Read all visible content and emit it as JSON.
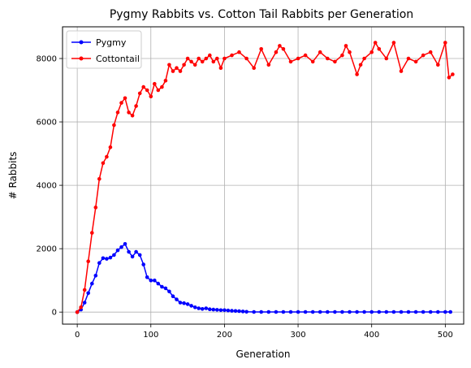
{
  "chart_data": {
    "type": "line",
    "title": "Pygmy Rabbits vs. Cotton Tail Rabbits per Generation",
    "xlabel": "Generation",
    "ylabel": "# Rabbits",
    "xlim": [
      -20,
      525
    ],
    "ylim": [
      -380,
      9000
    ],
    "xticks": [
      0,
      100,
      200,
      300,
      400,
      500
    ],
    "yticks": [
      0,
      2000,
      4000,
      6000,
      8000
    ],
    "grid": true,
    "legend_position": "upper-left",
    "series": [
      {
        "name": "Pygmy",
        "color": "#0000ff",
        "marker": "circle",
        "x": [
          0,
          5,
          10,
          15,
          20,
          25,
          30,
          35,
          40,
          45,
          50,
          55,
          60,
          65,
          70,
          75,
          80,
          85,
          90,
          95,
          100,
          105,
          110,
          115,
          120,
          125,
          130,
          135,
          140,
          145,
          150,
          155,
          160,
          165,
          170,
          175,
          180,
          185,
          190,
          195,
          200,
          205,
          210,
          215,
          220,
          225,
          230,
          240,
          250,
          260,
          270,
          280,
          290,
          300,
          310,
          320,
          330,
          340,
          350,
          360,
          370,
          380,
          390,
          400,
          410,
          420,
          430,
          440,
          450,
          460,
          470,
          480,
          490,
          500,
          507
        ],
        "y": [
          0,
          80,
          300,
          600,
          900,
          1150,
          1550,
          1700,
          1680,
          1720,
          1800,
          1950,
          2050,
          2150,
          1900,
          1750,
          1900,
          1800,
          1500,
          1100,
          1000,
          1000,
          900,
          800,
          750,
          650,
          500,
          400,
          300,
          280,
          250,
          200,
          150,
          120,
          100,
          120,
          90,
          80,
          70,
          60,
          60,
          50,
          40,
          35,
          30,
          20,
          10,
          5,
          5,
          5,
          5,
          5,
          5,
          5,
          5,
          5,
          5,
          5,
          5,
          5,
          5,
          5,
          5,
          5,
          5,
          5,
          5,
          5,
          5,
          5,
          5,
          5,
          5,
          5,
          5
        ]
      },
      {
        "name": "Cottontail",
        "color": "#ff0000",
        "marker": "circle",
        "x": [
          0,
          5,
          10,
          15,
          20,
          25,
          30,
          35,
          40,
          45,
          50,
          55,
          60,
          65,
          70,
          75,
          80,
          85,
          90,
          95,
          100,
          105,
          110,
          115,
          120,
          125,
          130,
          135,
          140,
          145,
          150,
          155,
          160,
          165,
          170,
          175,
          180,
          185,
          190,
          195,
          200,
          210,
          220,
          230,
          240,
          250,
          260,
          270,
          275,
          280,
          290,
          300,
          310,
          320,
          330,
          340,
          350,
          360,
          365,
          370,
          380,
          385,
          390,
          400,
          405,
          410,
          420,
          430,
          440,
          450,
          460,
          470,
          480,
          490,
          500,
          505,
          510
        ],
        "y": [
          0,
          150,
          700,
          1600,
          2500,
          3300,
          4200,
          4700,
          4900,
          5200,
          5900,
          6300,
          6600,
          6750,
          6300,
          6200,
          6500,
          6900,
          7100,
          7000,
          6800,
          7200,
          7000,
          7100,
          7300,
          7800,
          7600,
          7700,
          7600,
          7800,
          8000,
          7900,
          7800,
          8000,
          7900,
          8000,
          8100,
          7900,
          8000,
          7700,
          8000,
          8100,
          8200,
          8000,
          7700,
          8300,
          7800,
          8200,
          8400,
          8300,
          7900,
          8000,
          8100,
          7900,
          8200,
          8000,
          7900,
          8100,
          8400,
          8200,
          7500,
          7800,
          8000,
          8200,
          8500,
          8300,
          8000,
          8500,
          7600,
          8000,
          7900,
          8100,
          8200,
          7800,
          8500,
          7400,
          7500
        ]
      }
    ]
  }
}
